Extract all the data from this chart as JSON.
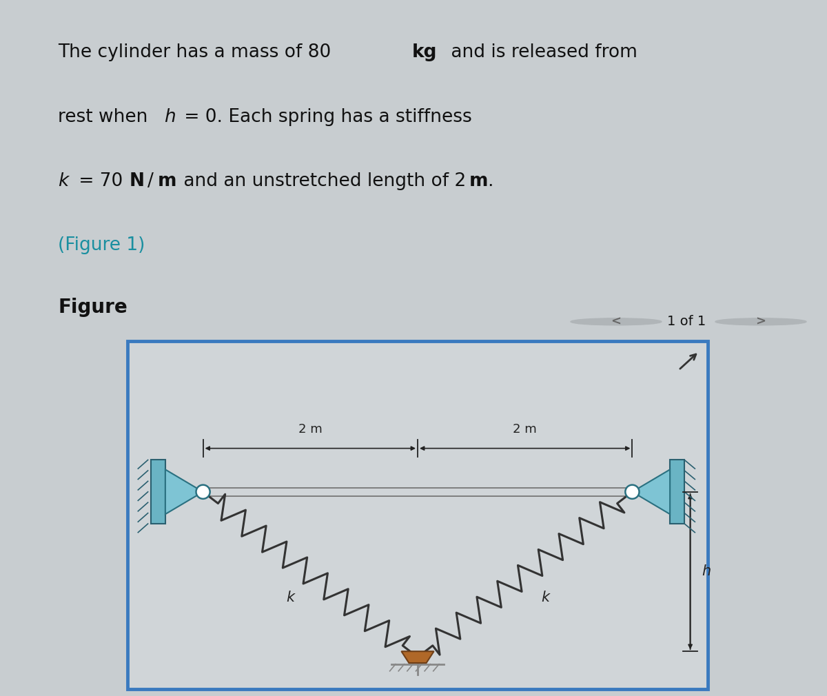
{
  "bg_color": "#c8cdd0",
  "fig_bg_color": "#c8cdd0",
  "inner_bg": "#d4d8db",
  "text_color": "#1a1a1a",
  "cyan_color": "#1a8fa0",
  "box_edge_color": "#3a7abf",
  "box_bg_color": "#d0d5d8",
  "bracket_fill": "#7bbccc",
  "bracket_edge": "#3a7090",
  "spring_color": "#333333",
  "cable_color": "#777777",
  "anchor_color": "#a06030",
  "dim_color": "#222222",
  "figure_label": "Figure",
  "nav_text": "1 of 1",
  "dim_label_left": "2 m",
  "dim_label_right": "2 m",
  "k_label": "k",
  "h_label": "h"
}
